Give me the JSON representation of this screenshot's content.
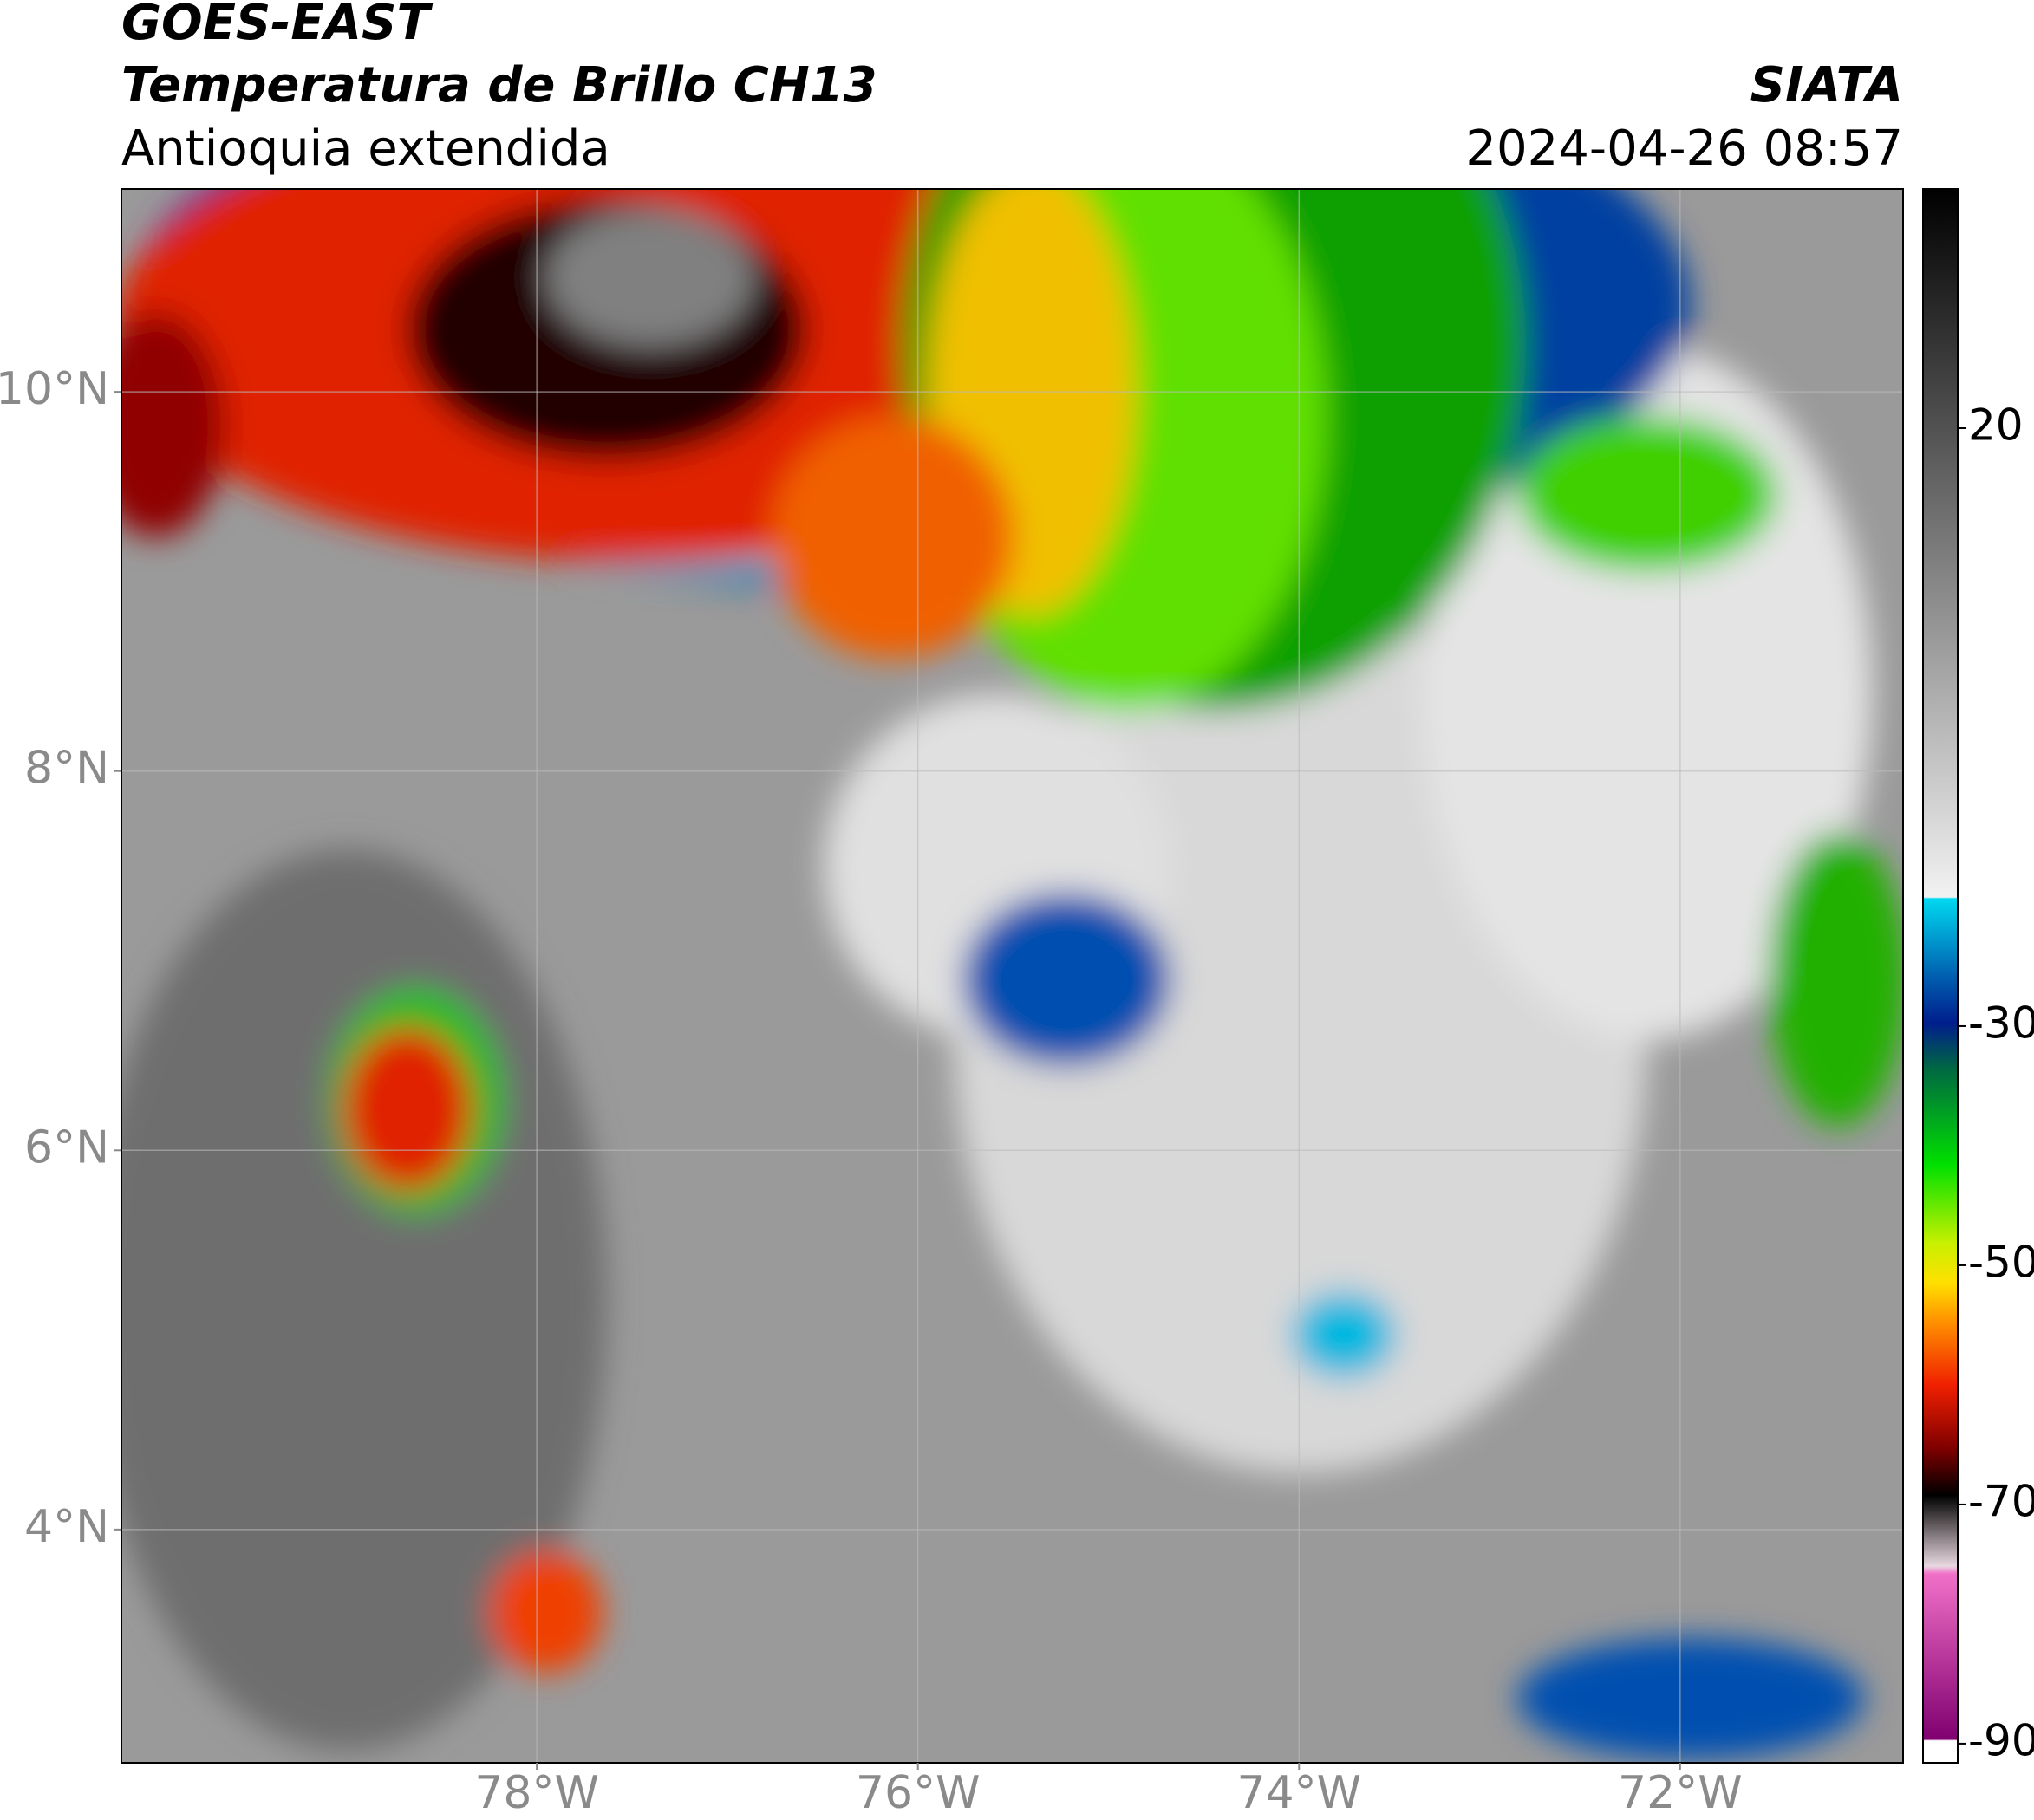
{
  "header": {
    "title": "GOES-EAST",
    "subtitle": "Temperatura de Brillo CH13",
    "region": "Antioquia extendida",
    "source": "SIATA",
    "datetime": "2024-04-26 08:57"
  },
  "map": {
    "xlim": [
      -80.18,
      -70.83
    ],
    "ylim": [
      2.77,
      11.07
    ],
    "xticks": [
      {
        "value": -78,
        "label": "78°W"
      },
      {
        "value": -76,
        "label": "76°W"
      },
      {
        "value": -74,
        "label": "74°W"
      },
      {
        "value": -72,
        "label": "72°W"
      }
    ],
    "yticks": [
      {
        "value": 10,
        "label": "10°N"
      },
      {
        "value": 8,
        "label": "8°N"
      },
      {
        "value": 6,
        "label": "6°N"
      },
      {
        "value": 4,
        "label": "4°N"
      }
    ],
    "grid": true
  },
  "colorbar": {
    "lim": [
      -91.6,
      40
    ],
    "ticks": [
      20,
      -30,
      -50,
      -70,
      -90
    ]
  }
}
